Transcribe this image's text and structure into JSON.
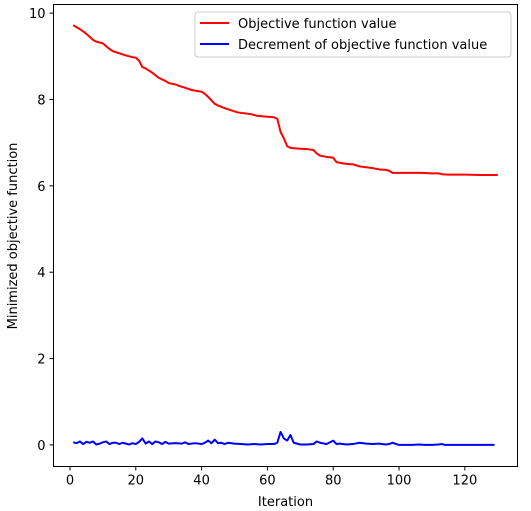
{
  "chart_data": {
    "type": "line",
    "xlabel": "Iteration",
    "ylabel": "Minimized objective function",
    "xlim": [
      -5,
      136
    ],
    "ylim": [
      -0.5,
      10.2
    ],
    "xticks": [
      0,
      20,
      40,
      60,
      80,
      100,
      120
    ],
    "yticks": [
      0,
      2,
      4,
      6,
      8,
      10
    ],
    "grid": false,
    "legend_position": "top-right",
    "series": [
      {
        "name": "Objective function value",
        "color": "#ff0000",
        "x": [
          1,
          3,
          5,
          7,
          8,
          10,
          12,
          13,
          15,
          17,
          19,
          20,
          21,
          22,
          23,
          25,
          27,
          29,
          30,
          32,
          33,
          35,
          37,
          40,
          41,
          42,
          44,
          45,
          47,
          49,
          51,
          53,
          55,
          57,
          60,
          62,
          63,
          64,
          65,
          66,
          67,
          68,
          70,
          72,
          74,
          75,
          76,
          78,
          80,
          81,
          83,
          85,
          86,
          88,
          90,
          92,
          94,
          96,
          97,
          98,
          100,
          102,
          105,
          107,
          110,
          112,
          113,
          115,
          118,
          120,
          125,
          130
        ],
        "y": [
          9.72,
          9.63,
          9.52,
          9.38,
          9.34,
          9.3,
          9.17,
          9.12,
          9.07,
          9.02,
          8.98,
          8.97,
          8.9,
          8.75,
          8.72,
          8.62,
          8.5,
          8.43,
          8.38,
          8.35,
          8.32,
          8.27,
          8.22,
          8.18,
          8.13,
          8.06,
          7.9,
          7.86,
          7.8,
          7.75,
          7.7,
          7.68,
          7.66,
          7.62,
          7.6,
          7.59,
          7.55,
          7.25,
          7.1,
          6.92,
          6.88,
          6.87,
          6.86,
          6.85,
          6.83,
          6.75,
          6.7,
          6.67,
          6.65,
          6.55,
          6.52,
          6.5,
          6.5,
          6.45,
          6.43,
          6.41,
          6.38,
          6.37,
          6.35,
          6.3,
          6.3,
          6.3,
          6.3,
          6.3,
          6.29,
          6.29,
          6.27,
          6.26,
          6.26,
          6.26,
          6.25,
          6.25
        ]
      },
      {
        "name": "Decrement of objective function value",
        "color": "#0000ff",
        "x": [
          1,
          2,
          3,
          4,
          5,
          6,
          7,
          8,
          9,
          10,
          11,
          12,
          13,
          14,
          15,
          16,
          17,
          18,
          19,
          20,
          21,
          22,
          23,
          24,
          25,
          26,
          27,
          28,
          29,
          30,
          32,
          34,
          35,
          36,
          38,
          40,
          41,
          42,
          43,
          44,
          45,
          46,
          47,
          48,
          50,
          52,
          54,
          56,
          58,
          60,
          62,
          63,
          64,
          65,
          66,
          67,
          68,
          70,
          72,
          74,
          75,
          76,
          78,
          80,
          81,
          82,
          84,
          86,
          88,
          90,
          92,
          94,
          96,
          97,
          98,
          100,
          104,
          106,
          108,
          110,
          112,
          113,
          114,
          116,
          120,
          125,
          129
        ],
        "y": [
          0.06,
          0.04,
          0.08,
          0.02,
          0.07,
          0.05,
          0.08,
          0.01,
          0.03,
          0.06,
          0.08,
          0.02,
          0.05,
          0.05,
          0.02,
          0.05,
          0.03,
          0.01,
          0.04,
          0.02,
          0.07,
          0.15,
          0.03,
          0.08,
          0.02,
          0.08,
          0.06,
          0.02,
          0.07,
          0.03,
          0.04,
          0.03,
          0.06,
          0.02,
          0.04,
          0.02,
          0.05,
          0.1,
          0.04,
          0.12,
          0.04,
          0.05,
          0.02,
          0.05,
          0.03,
          0.02,
          0.01,
          0.02,
          0.01,
          0.02,
          0.02,
          0.05,
          0.3,
          0.15,
          0.1,
          0.23,
          0.05,
          0.01,
          0.01,
          0.02,
          0.08,
          0.05,
          0.02,
          0.1,
          0.02,
          0.03,
          0.01,
          0.02,
          0.05,
          0.03,
          0.02,
          0.03,
          0.01,
          0.02,
          0.05,
          0.0,
          0.0,
          0.01,
          0.0,
          0.0,
          0.01,
          0.02,
          0.0,
          0.0,
          0.0,
          0.0,
          0.0
        ]
      }
    ]
  }
}
